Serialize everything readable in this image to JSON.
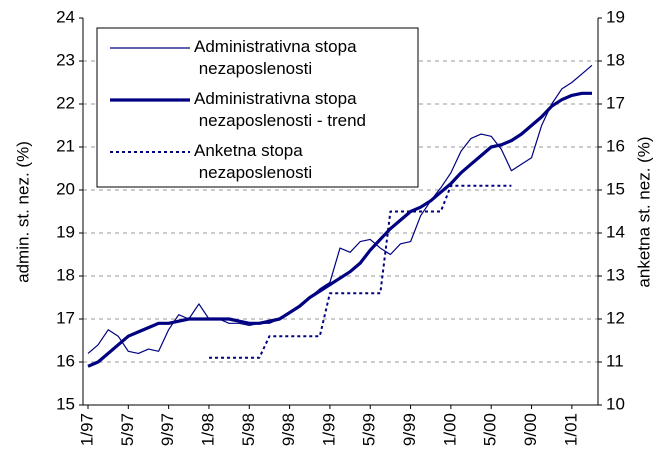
{
  "chart_data": {
    "type": "line",
    "categories": [
      "1/97",
      null,
      null,
      null,
      "5/97",
      null,
      null,
      null,
      "9/97",
      null,
      null,
      null,
      "1/98",
      null,
      null,
      null,
      "5/98",
      null,
      null,
      null,
      "9/98",
      null,
      null,
      null,
      "1/99",
      null,
      null,
      null,
      "5/99",
      null,
      null,
      null,
      "9/99",
      null,
      null,
      null,
      "1/00",
      null,
      null,
      null,
      "5/00",
      null,
      null,
      null,
      "9/00",
      null,
      null,
      null,
      "1/01",
      null,
      null
    ],
    "ylabel": "admin. st. nez. (%)",
    "y2label": "anketna st. nez. (%)",
    "ylim": [
      15,
      24
    ],
    "yticks": [
      15,
      16,
      17,
      18,
      19,
      20,
      21,
      22,
      23,
      24
    ],
    "y2lim": [
      10,
      19
    ],
    "y2ticks": [
      10,
      11,
      12,
      13,
      14,
      15,
      16,
      17,
      18,
      19
    ],
    "grid": true,
    "legend": "upper left",
    "series": [
      {
        "name": "Administrativna stopa nezaposlenosti",
        "color": "#000080",
        "style": "thin",
        "values": [
          16.2,
          16.4,
          16.75,
          16.6,
          16.25,
          16.2,
          16.3,
          16.25,
          16.75,
          17.1,
          17.0,
          17.35,
          17.0,
          17.0,
          16.9,
          16.9,
          16.85,
          16.9,
          16.9,
          17.0,
          17.15,
          17.3,
          17.5,
          17.7,
          17.85,
          18.65,
          18.55,
          18.8,
          18.85,
          18.65,
          18.5,
          18.75,
          18.8,
          19.4,
          19.75,
          20.05,
          20.4,
          20.9,
          21.2,
          21.3,
          21.25,
          20.95,
          20.45,
          20.6,
          20.75,
          21.5,
          22.0,
          22.35,
          22.5,
          22.7,
          22.9
        ]
      },
      {
        "name": "Administrativna stopa nezaposlenosti - trend",
        "color": "#000080",
        "style": "thick",
        "values": [
          15.9,
          16.0,
          16.2,
          16.4,
          16.6,
          16.7,
          16.8,
          16.9,
          16.9,
          16.95,
          17.0,
          17.0,
          17.0,
          17.0,
          17.0,
          16.95,
          16.9,
          16.9,
          16.95,
          17.0,
          17.15,
          17.3,
          17.5,
          17.65,
          17.8,
          17.95,
          18.1,
          18.3,
          18.6,
          18.85,
          19.1,
          19.3,
          19.5,
          19.6,
          19.75,
          19.95,
          20.15,
          20.4,
          20.6,
          20.8,
          21.0,
          21.05,
          21.15,
          21.3,
          21.5,
          21.7,
          21.95,
          22.1,
          22.2,
          22.25,
          22.25
        ]
      },
      {
        "name": "Anketna stopa nezaposlenosti",
        "color": "#000080",
        "style": "dotted",
        "axis": "y2",
        "values": [
          null,
          null,
          null,
          null,
          null,
          null,
          null,
          null,
          null,
          null,
          null,
          null,
          11.1,
          11.1,
          11.1,
          11.1,
          11.1,
          11.1,
          11.6,
          11.6,
          11.6,
          11.6,
          11.6,
          11.6,
          12.6,
          12.6,
          12.6,
          12.6,
          12.6,
          12.6,
          14.5,
          14.5,
          14.5,
          14.5,
          14.5,
          14.5,
          15.1,
          15.1,
          15.1,
          15.1,
          15.1,
          15.1,
          15.1,
          null,
          null,
          null,
          null,
          null,
          null,
          null,
          null
        ]
      }
    ]
  }
}
